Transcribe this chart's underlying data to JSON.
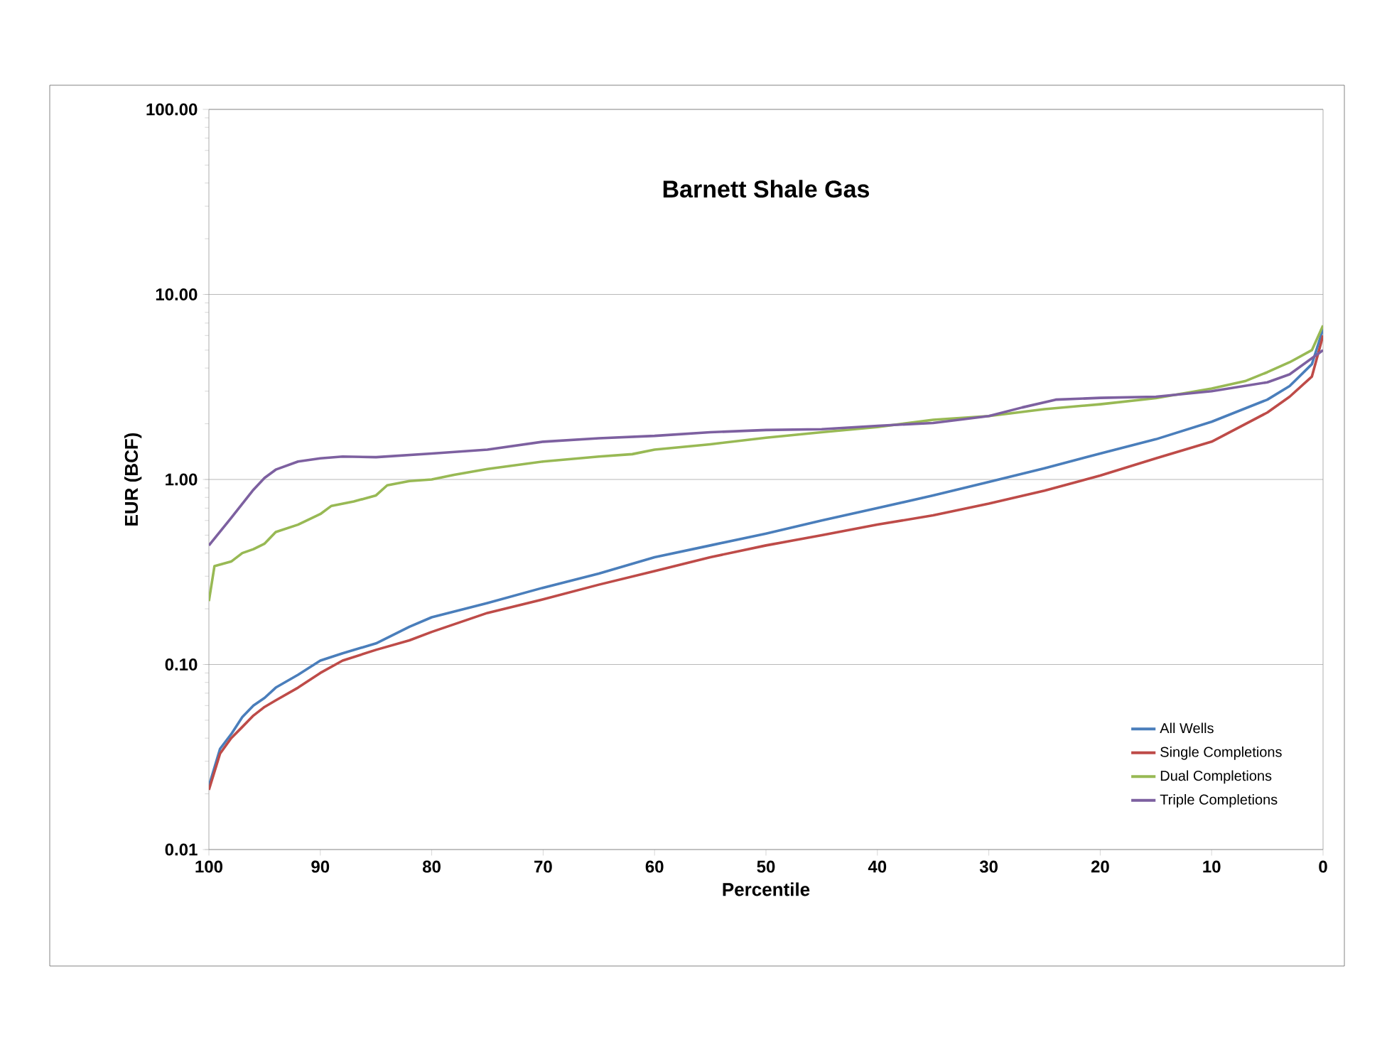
{
  "chart_data": {
    "type": "line",
    "title": "Barnett Shale Gas",
    "xlabel": "Percentile",
    "ylabel": "EUR  (BCF)",
    "log": "y",
    "grid": "y",
    "legend": "bottom right",
    "marker": "none",
    "line_style": "solid",
    "xlim": [
      100,
      0
    ],
    "xticks": [
      100,
      90,
      80,
      70,
      60,
      50,
      40,
      30,
      20,
      10,
      0
    ],
    "ylim": [
      0.01,
      100
    ],
    "yticks": [
      {
        "value": 0.01,
        "label": "0.01"
      },
      {
        "value": 0.1,
        "label": "0.10"
      },
      {
        "value": 1,
        "label": "1.00"
      },
      {
        "value": 10,
        "label": "10.00"
      },
      {
        "value": 100,
        "label": "100.00"
      }
    ],
    "series": [
      {
        "name": "All Wells",
        "color": "#4a7ebb",
        "x": [
          100,
          99,
          98,
          97,
          96,
          95,
          94,
          92,
          90,
          88,
          85,
          82,
          80,
          75,
          70,
          65,
          60,
          55,
          50,
          45,
          40,
          35,
          30,
          25,
          20,
          15,
          10,
          5,
          3,
          1,
          0
        ],
        "values": [
          0.022,
          0.035,
          0.042,
          0.052,
          0.06,
          0.066,
          0.075,
          0.088,
          0.105,
          0.115,
          0.13,
          0.16,
          0.18,
          0.215,
          0.26,
          0.31,
          0.38,
          0.44,
          0.51,
          0.6,
          0.7,
          0.82,
          0.97,
          1.15,
          1.38,
          1.65,
          2.05,
          2.7,
          3.2,
          4.2,
          6.5
        ]
      },
      {
        "name": "Single Completions",
        "color": "#be4b48",
        "x": [
          100,
          99,
          98,
          97,
          96,
          95,
          94,
          92,
          90,
          88,
          85,
          82,
          80,
          75,
          70,
          65,
          60,
          55,
          50,
          45,
          40,
          35,
          30,
          25,
          20,
          15,
          10,
          5,
          3,
          1,
          0
        ],
        "values": [
          0.021,
          0.033,
          0.04,
          0.046,
          0.053,
          0.059,
          0.064,
          0.075,
          0.09,
          0.105,
          0.12,
          0.135,
          0.15,
          0.19,
          0.225,
          0.27,
          0.32,
          0.38,
          0.44,
          0.5,
          0.57,
          0.64,
          0.74,
          0.87,
          1.05,
          1.3,
          1.6,
          2.3,
          2.8,
          3.6,
          6.0
        ]
      },
      {
        "name": "Dual Completions",
        "color": "#98b954",
        "x": [
          100,
          99.5,
          98,
          97,
          96,
          95,
          94,
          92,
          90,
          89,
          87,
          85,
          84,
          82,
          80,
          78,
          75,
          70,
          65,
          62,
          60,
          55,
          50,
          45,
          40,
          35,
          30,
          25,
          20,
          15,
          10,
          7,
          5,
          3,
          1,
          0
        ],
        "values": [
          0.22,
          0.34,
          0.36,
          0.4,
          0.42,
          0.45,
          0.52,
          0.57,
          0.65,
          0.72,
          0.76,
          0.82,
          0.93,
          0.98,
          1.0,
          1.06,
          1.14,
          1.25,
          1.33,
          1.37,
          1.45,
          1.55,
          1.68,
          1.8,
          1.92,
          2.1,
          2.2,
          2.4,
          2.55,
          2.75,
          3.1,
          3.4,
          3.8,
          4.3,
          5.0,
          6.8
        ]
      },
      {
        "name": "Triple Completions",
        "color": "#7d60a0",
        "x": [
          100,
          98,
          96,
          95,
          94,
          92,
          90,
          88,
          85,
          80,
          75,
          70,
          65,
          60,
          55,
          50,
          45,
          40,
          35,
          30,
          27,
          24,
          20,
          15,
          10,
          5,
          3,
          0
        ],
        "values": [
          0.44,
          0.62,
          0.88,
          1.02,
          1.13,
          1.25,
          1.3,
          1.33,
          1.32,
          1.38,
          1.45,
          1.6,
          1.67,
          1.72,
          1.8,
          1.85,
          1.87,
          1.95,
          2.02,
          2.2,
          2.45,
          2.7,
          2.76,
          2.8,
          3.0,
          3.35,
          3.7,
          5.0
        ]
      }
    ]
  }
}
